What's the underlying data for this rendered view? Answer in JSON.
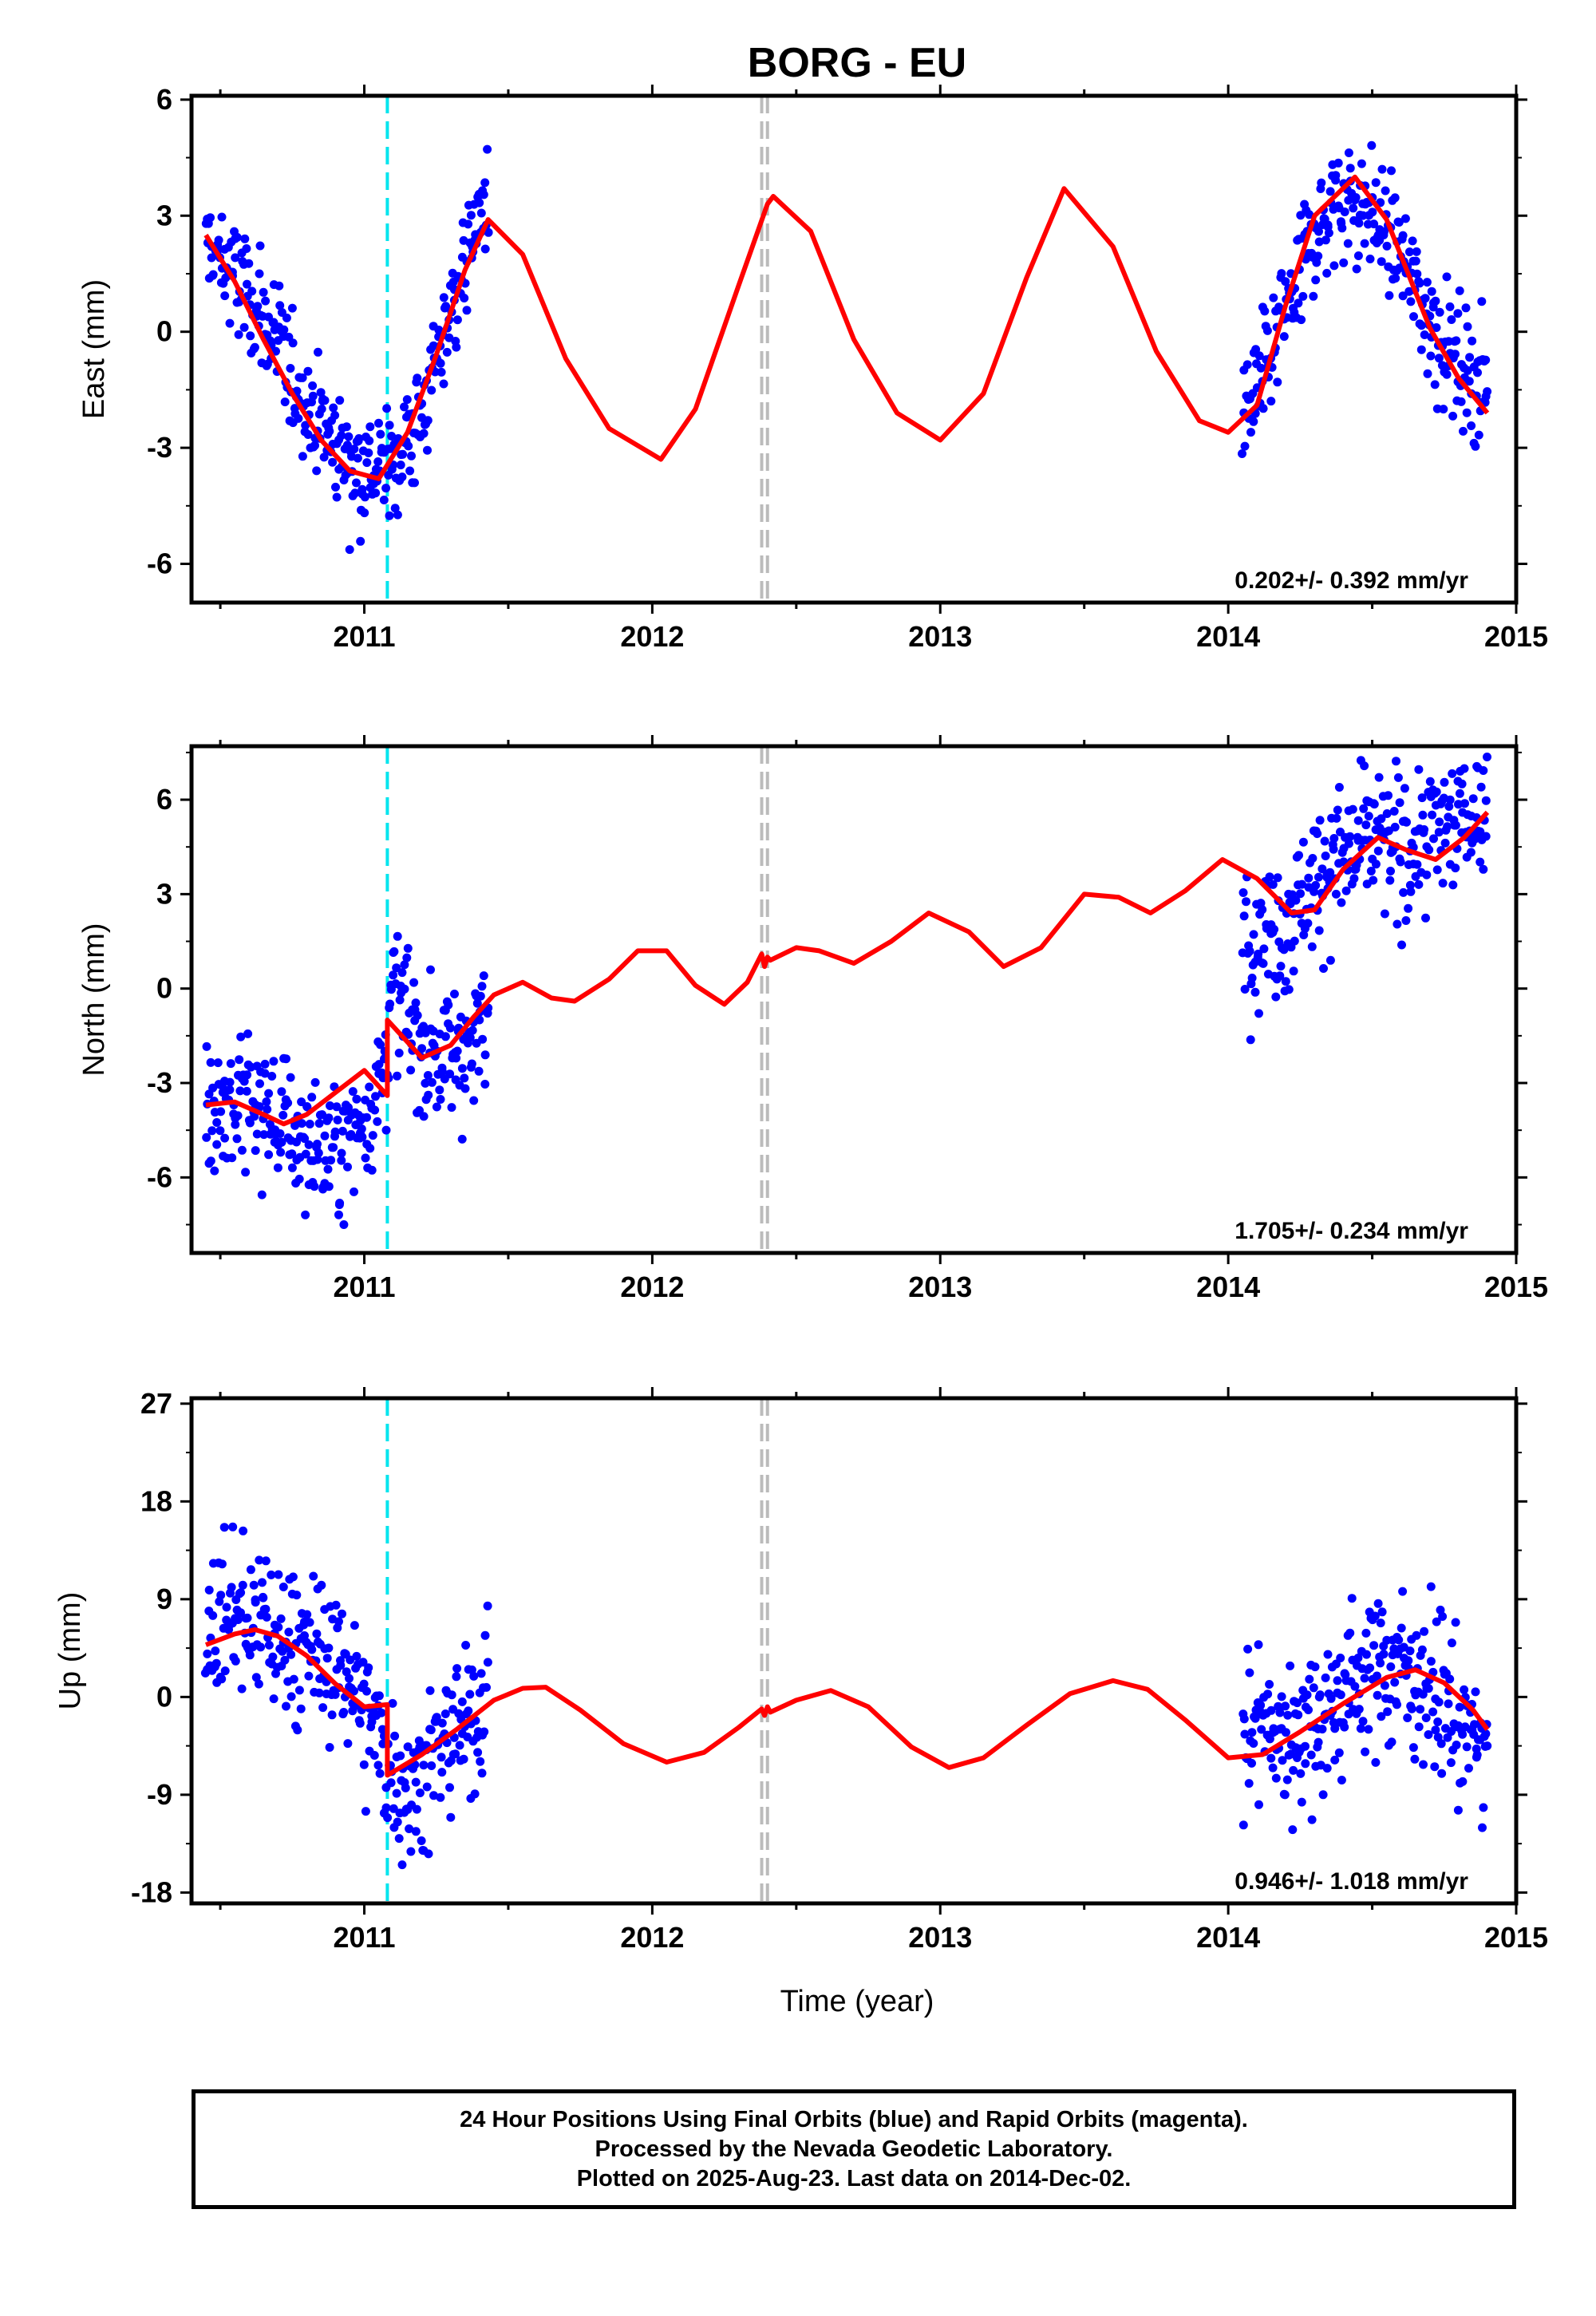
{
  "title": "BORG - EU",
  "xlabel": "Time (year)",
  "caption": [
    "24 Hour Positions Using Final Orbits (blue) and Rapid Orbits (magenta).",
    "Processed by the Nevada Geodetic Laboratory.",
    "Plotted on 2025-Aug-23. Last data on 2014-Dec-02."
  ],
  "colors": {
    "data": "#0000ff",
    "model": "#ff0000",
    "equipment_change": "#00e5ee",
    "other_step": "#bbbbbb",
    "axes": "#000000"
  },
  "chart_data": [
    {
      "type": "scatter",
      "panel": "east",
      "ylabel": "East (mm)",
      "ylim": [
        -7,
        6.1
      ],
      "yticks": [
        "6",
        "3",
        "0",
        "-3",
        "-6"
      ],
      "yticks_values": [
        6,
        3,
        0,
        -3,
        -6
      ],
      "xlim": [
        2010.4,
        2015.0
      ],
      "xticks": [
        "2011",
        "2012",
        "2013",
        "2014",
        "2015"
      ],
      "xticks_values": [
        2011,
        2012,
        2013,
        2014,
        2015
      ],
      "rate": "0.202+/- 0.392 mm/yr",
      "data_segments": [
        {
          "x": [
            2010.45,
            2010.5,
            2010.6,
            2010.7,
            2010.8,
            2010.9,
            2011.0,
            2011.1,
            2011.2,
            2011.3,
            2011.4,
            2011.43
          ],
          "y": [
            2.3,
            1.8,
            0.9,
            -0.4,
            -1.8,
            -2.9,
            -3.6,
            -3.4,
            -2.2,
            0.6,
            3.0,
            3.5
          ]
        },
        {
          "x": [
            2014.05,
            2014.1,
            2014.2,
            2014.3,
            2014.4,
            2014.5,
            2014.6,
            2014.7,
            2014.8,
            2014.9
          ],
          "y": [
            -2.2,
            -1.6,
            0.5,
            2.6,
            3.5,
            3.1,
            2.0,
            0.3,
            -0.8,
            -1.4
          ]
        }
      ],
      "model": {
        "x": [
          2010.45,
          2010.55,
          2010.65,
          2010.75,
          2010.85,
          2010.95,
          2011.05,
          2011.15,
          2011.25,
          2011.35,
          2011.43,
          2011.55,
          2011.7,
          2011.85,
          2012.03,
          2012.15,
          2012.3,
          2012.4,
          2012.42,
          2012.55,
          2012.7,
          2012.85,
          2013.0,
          2013.15,
          2013.3,
          2013.43,
          2013.6,
          2013.75,
          2013.9,
          2014.0,
          2014.1,
          2014.2,
          2014.3,
          2014.44,
          2014.55,
          2014.7,
          2014.8,
          2014.9
        ],
        "y": [
          2.5,
          1.3,
          -0.2,
          -1.6,
          -2.8,
          -3.6,
          -3.8,
          -2.6,
          -0.6,
          1.6,
          2.9,
          2.0,
          -0.7,
          -2.5,
          -3.3,
          -2.0,
          1.2,
          3.3,
          3.5,
          2.6,
          -0.2,
          -2.1,
          -2.8,
          -1.6,
          1.4,
          3.7,
          2.2,
          -0.5,
          -2.3,
          -2.6,
          -1.9,
          0.7,
          3.0,
          4.0,
          2.9,
          0.1,
          -1.2,
          -2.1
        ]
      },
      "equipment_changes": [
        2011.08
      ],
      "other_steps": [
        2012.38,
        2012.4
      ]
    },
    {
      "type": "scatter",
      "panel": "north",
      "ylabel": "North (mm)",
      "ylim": [
        -8.4,
        7.7
      ],
      "yticks": [
        "6",
        "3",
        "0",
        "-3",
        "-6"
      ],
      "yticks_values": [
        6,
        3,
        0,
        -3,
        -6
      ],
      "xlim": [
        2010.4,
        2015.0
      ],
      "xticks": [
        "2011",
        "2012",
        "2013",
        "2014",
        "2015"
      ],
      "xticks_values": [
        2011,
        2012,
        2013,
        2014,
        2015
      ],
      "rate": "1.705+/- 0.234 mm/yr",
      "data_segments": [
        {
          "x": [
            2010.45,
            2010.55,
            2010.65,
            2010.75,
            2010.85,
            2010.95,
            2011.05,
            2011.1,
            2011.15,
            2011.2,
            2011.3,
            2011.4,
            2011.43
          ],
          "y": [
            -3.5,
            -3.6,
            -3.9,
            -4.5,
            -5.2,
            -4.9,
            -3.0,
            -0.3,
            -0.7,
            -1.9,
            -2.1,
            -1.5,
            -1.2
          ]
        },
        {
          "x": [
            2014.05,
            2014.1,
            2014.2,
            2014.3,
            2014.4,
            2014.5,
            2014.6,
            2014.7,
            2014.8,
            2014.9
          ],
          "y": [
            2.6,
            1.5,
            2.2,
            3.5,
            4.2,
            4.8,
            4.3,
            4.9,
            5.5,
            5.7
          ]
        }
      ],
      "model": {
        "x": [
          2010.45,
          2010.55,
          2010.65,
          2010.72,
          2010.8,
          2010.9,
          2011.0,
          2011.08,
          2011.08,
          2011.15,
          2011.2,
          2011.3,
          2011.38,
          2011.45,
          2011.55,
          2011.65,
          2011.73,
          2011.85,
          2011.95,
          2012.05,
          2012.15,
          2012.25,
          2012.33,
          2012.38,
          2012.39,
          2012.4,
          2012.41,
          2012.5,
          2012.58,
          2012.7,
          2012.83,
          2012.96,
          2013.1,
          2013.22,
          2013.35,
          2013.5,
          2013.62,
          2013.73,
          2013.85,
          2013.98,
          2014.1,
          2014.22,
          2014.3,
          2014.4,
          2014.52,
          2014.62,
          2014.72,
          2014.82,
          2014.9
        ],
        "y": [
          -3.7,
          -3.6,
          -4.0,
          -4.3,
          -4.0,
          -3.3,
          -2.6,
          -3.4,
          -1.0,
          -1.7,
          -2.2,
          -1.8,
          -0.9,
          -0.2,
          0.2,
          -0.3,
          -0.4,
          0.3,
          1.2,
          1.2,
          0.1,
          -0.5,
          0.2,
          1.1,
          0.7,
          1.0,
          0.9,
          1.3,
          1.2,
          0.8,
          1.5,
          2.4,
          1.8,
          0.7,
          1.3,
          3.0,
          2.9,
          2.4,
          3.1,
          4.1,
          3.5,
          2.4,
          2.5,
          3.8,
          4.8,
          4.4,
          4.1,
          4.8,
          5.6
        ]
      },
      "equipment_changes": [
        2011.08
      ],
      "other_steps": [
        2012.38,
        2012.4
      ]
    },
    {
      "type": "scatter",
      "panel": "up",
      "ylabel": "Up (mm)",
      "ylim": [
        -19,
        27.5
      ],
      "yticks": [
        "27",
        "18",
        "9",
        "0",
        "-9",
        "-18"
      ],
      "yticks_values": [
        27,
        18,
        9,
        0,
        -9,
        -18
      ],
      "xlim": [
        2010.4,
        2015.0
      ],
      "xticks": [
        "2011",
        "2012",
        "2013",
        "2014",
        "2015"
      ],
      "xticks_values": [
        2011,
        2012,
        2013,
        2014,
        2015
      ],
      "rate": "0.946+/- 1.018 mm/yr",
      "data_segments": [
        {
          "x": [
            2010.45,
            2010.55,
            2010.65,
            2010.75,
            2010.85,
            2010.95,
            2011.05,
            2011.1,
            2011.15,
            2011.2,
            2011.3,
            2011.4,
            2011.43
          ],
          "y": [
            6.0,
            8.0,
            6.0,
            5.0,
            4.0,
            2.0,
            -4.0,
            -6.0,
            -9.0,
            -7.0,
            -4.0,
            -1.0,
            2.0
          ]
        },
        {
          "x": [
            2014.05,
            2014.1,
            2014.2,
            2014.3,
            2014.4,
            2014.5,
            2014.6,
            2014.7,
            2014.8,
            2014.9
          ],
          "y": [
            -4.0,
            -2.0,
            -4.0,
            -2.0,
            0.0,
            3.0,
            3.0,
            1.0,
            -2.0,
            -5.0
          ]
        }
      ],
      "model": {
        "x": [
          2010.45,
          2010.55,
          2010.62,
          2010.7,
          2010.8,
          2010.9,
          2011.0,
          2011.08,
          2011.08,
          2011.2,
          2011.32,
          2011.45,
          2011.55,
          2011.63,
          2011.75,
          2011.9,
          2012.05,
          2012.18,
          2012.3,
          2012.38,
          2012.39,
          2012.4,
          2012.41,
          2012.5,
          2012.62,
          2012.75,
          2012.9,
          2013.03,
          2013.15,
          2013.3,
          2013.45,
          2013.6,
          2013.72,
          2013.85,
          2014.0,
          2014.12,
          2014.25,
          2014.4,
          2014.55,
          2014.65,
          2014.75,
          2014.85,
          2014.9
        ],
        "y": [
          4.8,
          5.8,
          6.2,
          5.6,
          3.8,
          1.2,
          -0.9,
          -0.7,
          -7.2,
          -5.3,
          -3.0,
          -0.3,
          0.8,
          0.9,
          -1.2,
          -4.3,
          -6.0,
          -5.1,
          -2.8,
          -1.1,
          -1.7,
          -0.9,
          -1.4,
          -0.3,
          0.6,
          -0.9,
          -4.6,
          -6.5,
          -5.6,
          -2.6,
          0.3,
          1.5,
          0.7,
          -2.1,
          -5.6,
          -5.3,
          -3.2,
          -0.6,
          1.8,
          2.5,
          1.3,
          -1.2,
          -3.0
        ]
      },
      "equipment_changes": [
        2011.08
      ],
      "other_steps": [
        2012.38,
        2012.4
      ]
    }
  ]
}
